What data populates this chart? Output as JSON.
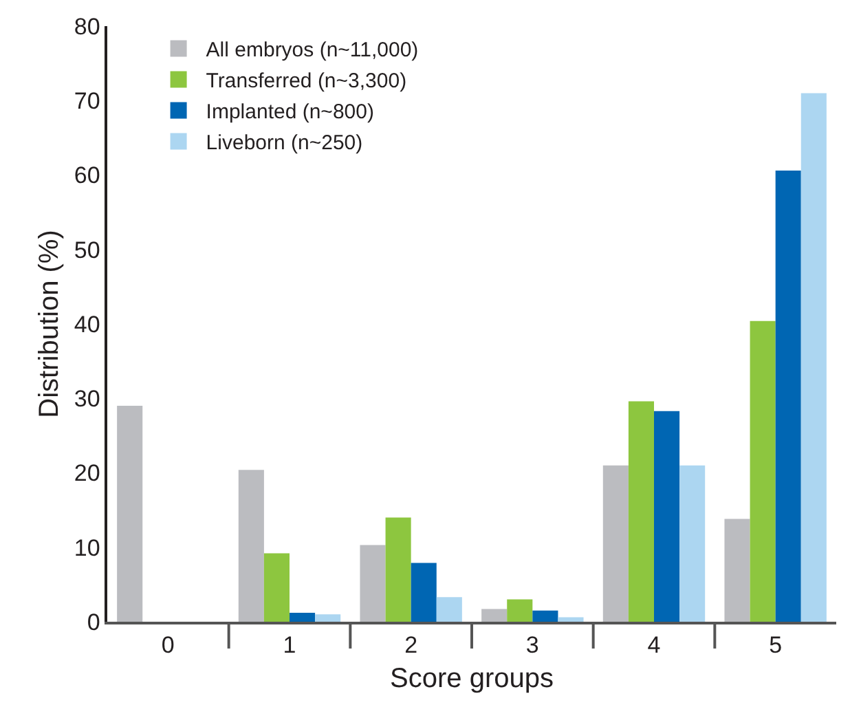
{
  "chart_data": {
    "type": "bar",
    "xlabel": "Score groups",
    "ylabel": "Distribution (%)",
    "categories": [
      "0",
      "1",
      "2",
      "3",
      "4",
      "5"
    ],
    "series": [
      {
        "name": "All embryos (n~11,000)",
        "color": "#bbbcc0",
        "values": [
          29,
          20.4,
          10.3,
          1.7,
          21.0,
          13.8
        ]
      },
      {
        "name": "Transferred (n~3,300)",
        "color": "#8dc63f",
        "values": [
          null,
          9.2,
          14.0,
          3.0,
          29.6,
          40.4
        ]
      },
      {
        "name": "Implanted (n~800)",
        "color": "#0066b3",
        "values": [
          null,
          1.2,
          7.9,
          1.5,
          28.3,
          60.6
        ]
      },
      {
        "name": "Liveborn (n~250)",
        "color": "#acd6f1",
        "values": [
          null,
          1.0,
          3.3,
          0.6,
          21.0,
          71.0
        ]
      }
    ],
    "ylim": [
      0,
      80
    ],
    "yticks": [
      0,
      10,
      20,
      30,
      40,
      50,
      60,
      70,
      80
    ],
    "legend": "top left"
  }
}
